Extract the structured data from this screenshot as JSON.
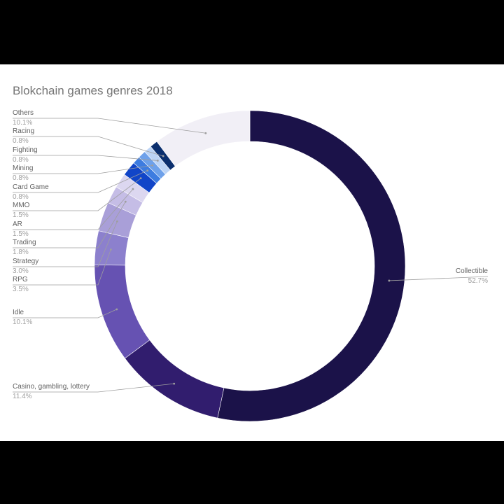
{
  "chart_data": {
    "type": "pie",
    "donut": true,
    "title": "Blokchain games genres 2018",
    "slices": [
      {
        "label": "Collectible",
        "value": 52.7,
        "value_text": "52.7%",
        "color": "#1b1249"
      },
      {
        "label": "Casino, gambling, lottery",
        "value": 11.4,
        "value_text": "11.4%",
        "color": "#311d6e"
      },
      {
        "label": "Idle",
        "value": 10.1,
        "value_text": "10.1%",
        "color": "#6652b2"
      },
      {
        "label": "RPG",
        "value": 3.5,
        "value_text": "3.5%",
        "color": "#8c80cd"
      },
      {
        "label": "Strategy",
        "value": 3.0,
        "value_text": "3.0%",
        "color": "#a99fd8"
      },
      {
        "label": "Trading",
        "value": 1.8,
        "value_text": "1.8%",
        "color": "#c5bde6"
      },
      {
        "label": "AR",
        "value": 1.5,
        "value_text": "1.5%",
        "color": "#dcd7f0"
      },
      {
        "label": "MMO",
        "value": 1.5,
        "value_text": "1.5%",
        "color": "#1145c8"
      },
      {
        "label": "Card Game",
        "value": 0.8,
        "value_text": "0.8%",
        "color": "#3d7ce0"
      },
      {
        "label": "Mining",
        "value": 0.8,
        "value_text": "0.8%",
        "color": "#6ea1ea"
      },
      {
        "label": "Fighting",
        "value": 0.8,
        "value_text": "0.8%",
        "color": "#bcd4f6"
      },
      {
        "label": "Racing",
        "value": 0.8,
        "value_text": "0.8%",
        "color": "#0b2f6e"
      },
      {
        "label": "Others",
        "value": 10.1,
        "value_text": "10.1%",
        "color": "#f1eff6"
      }
    ]
  }
}
